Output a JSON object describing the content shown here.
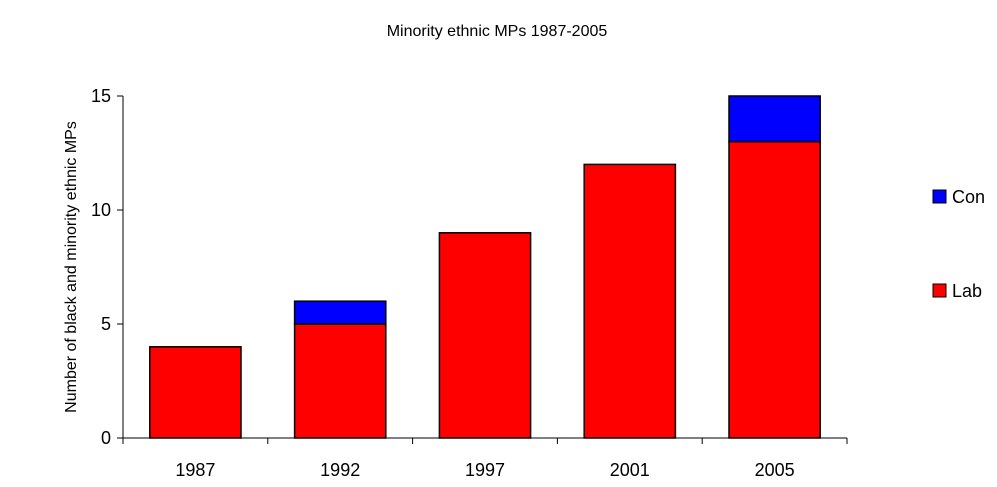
{
  "chart_data": {
    "type": "bar",
    "stacked": true,
    "title": "Minority ethnic MPs 1987-2005",
    "xlabel": "",
    "ylabel": "Number of black and minority ethnic MPs",
    "categories": [
      "1987",
      "1992",
      "1997",
      "2001",
      "2005"
    ],
    "series": [
      {
        "name": "Lab",
        "color": "#ff0000",
        "values": [
          4,
          5,
          9,
          12,
          13
        ]
      },
      {
        "name": "Con",
        "color": "#0000ff",
        "values": [
          0,
          1,
          0,
          0,
          2
        ]
      }
    ],
    "ylim": [
      0,
      15
    ],
    "yticks": [
      "0",
      "5",
      "10",
      "15"
    ],
    "grid": false,
    "legend_position": "right",
    "legend_order": [
      "Con",
      "Lab"
    ]
  }
}
